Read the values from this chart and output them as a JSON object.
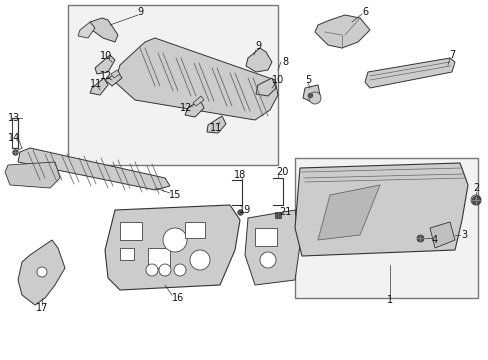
{
  "bg_color": "#ffffff",
  "fig_width": 4.89,
  "fig_height": 3.6,
  "dpi": 100,
  "font_size": 7,
  "lc": "#111111",
  "lw_thin": 0.5,
  "lw_med": 0.8,
  "lw_thick": 1.0,
  "fc_part": "#d8d8d8",
  "fc_light": "#e8e8e8",
  "fc_box": "#f0f0f0",
  "ec_part": "#333333",
  "ec_box": "#666666"
}
